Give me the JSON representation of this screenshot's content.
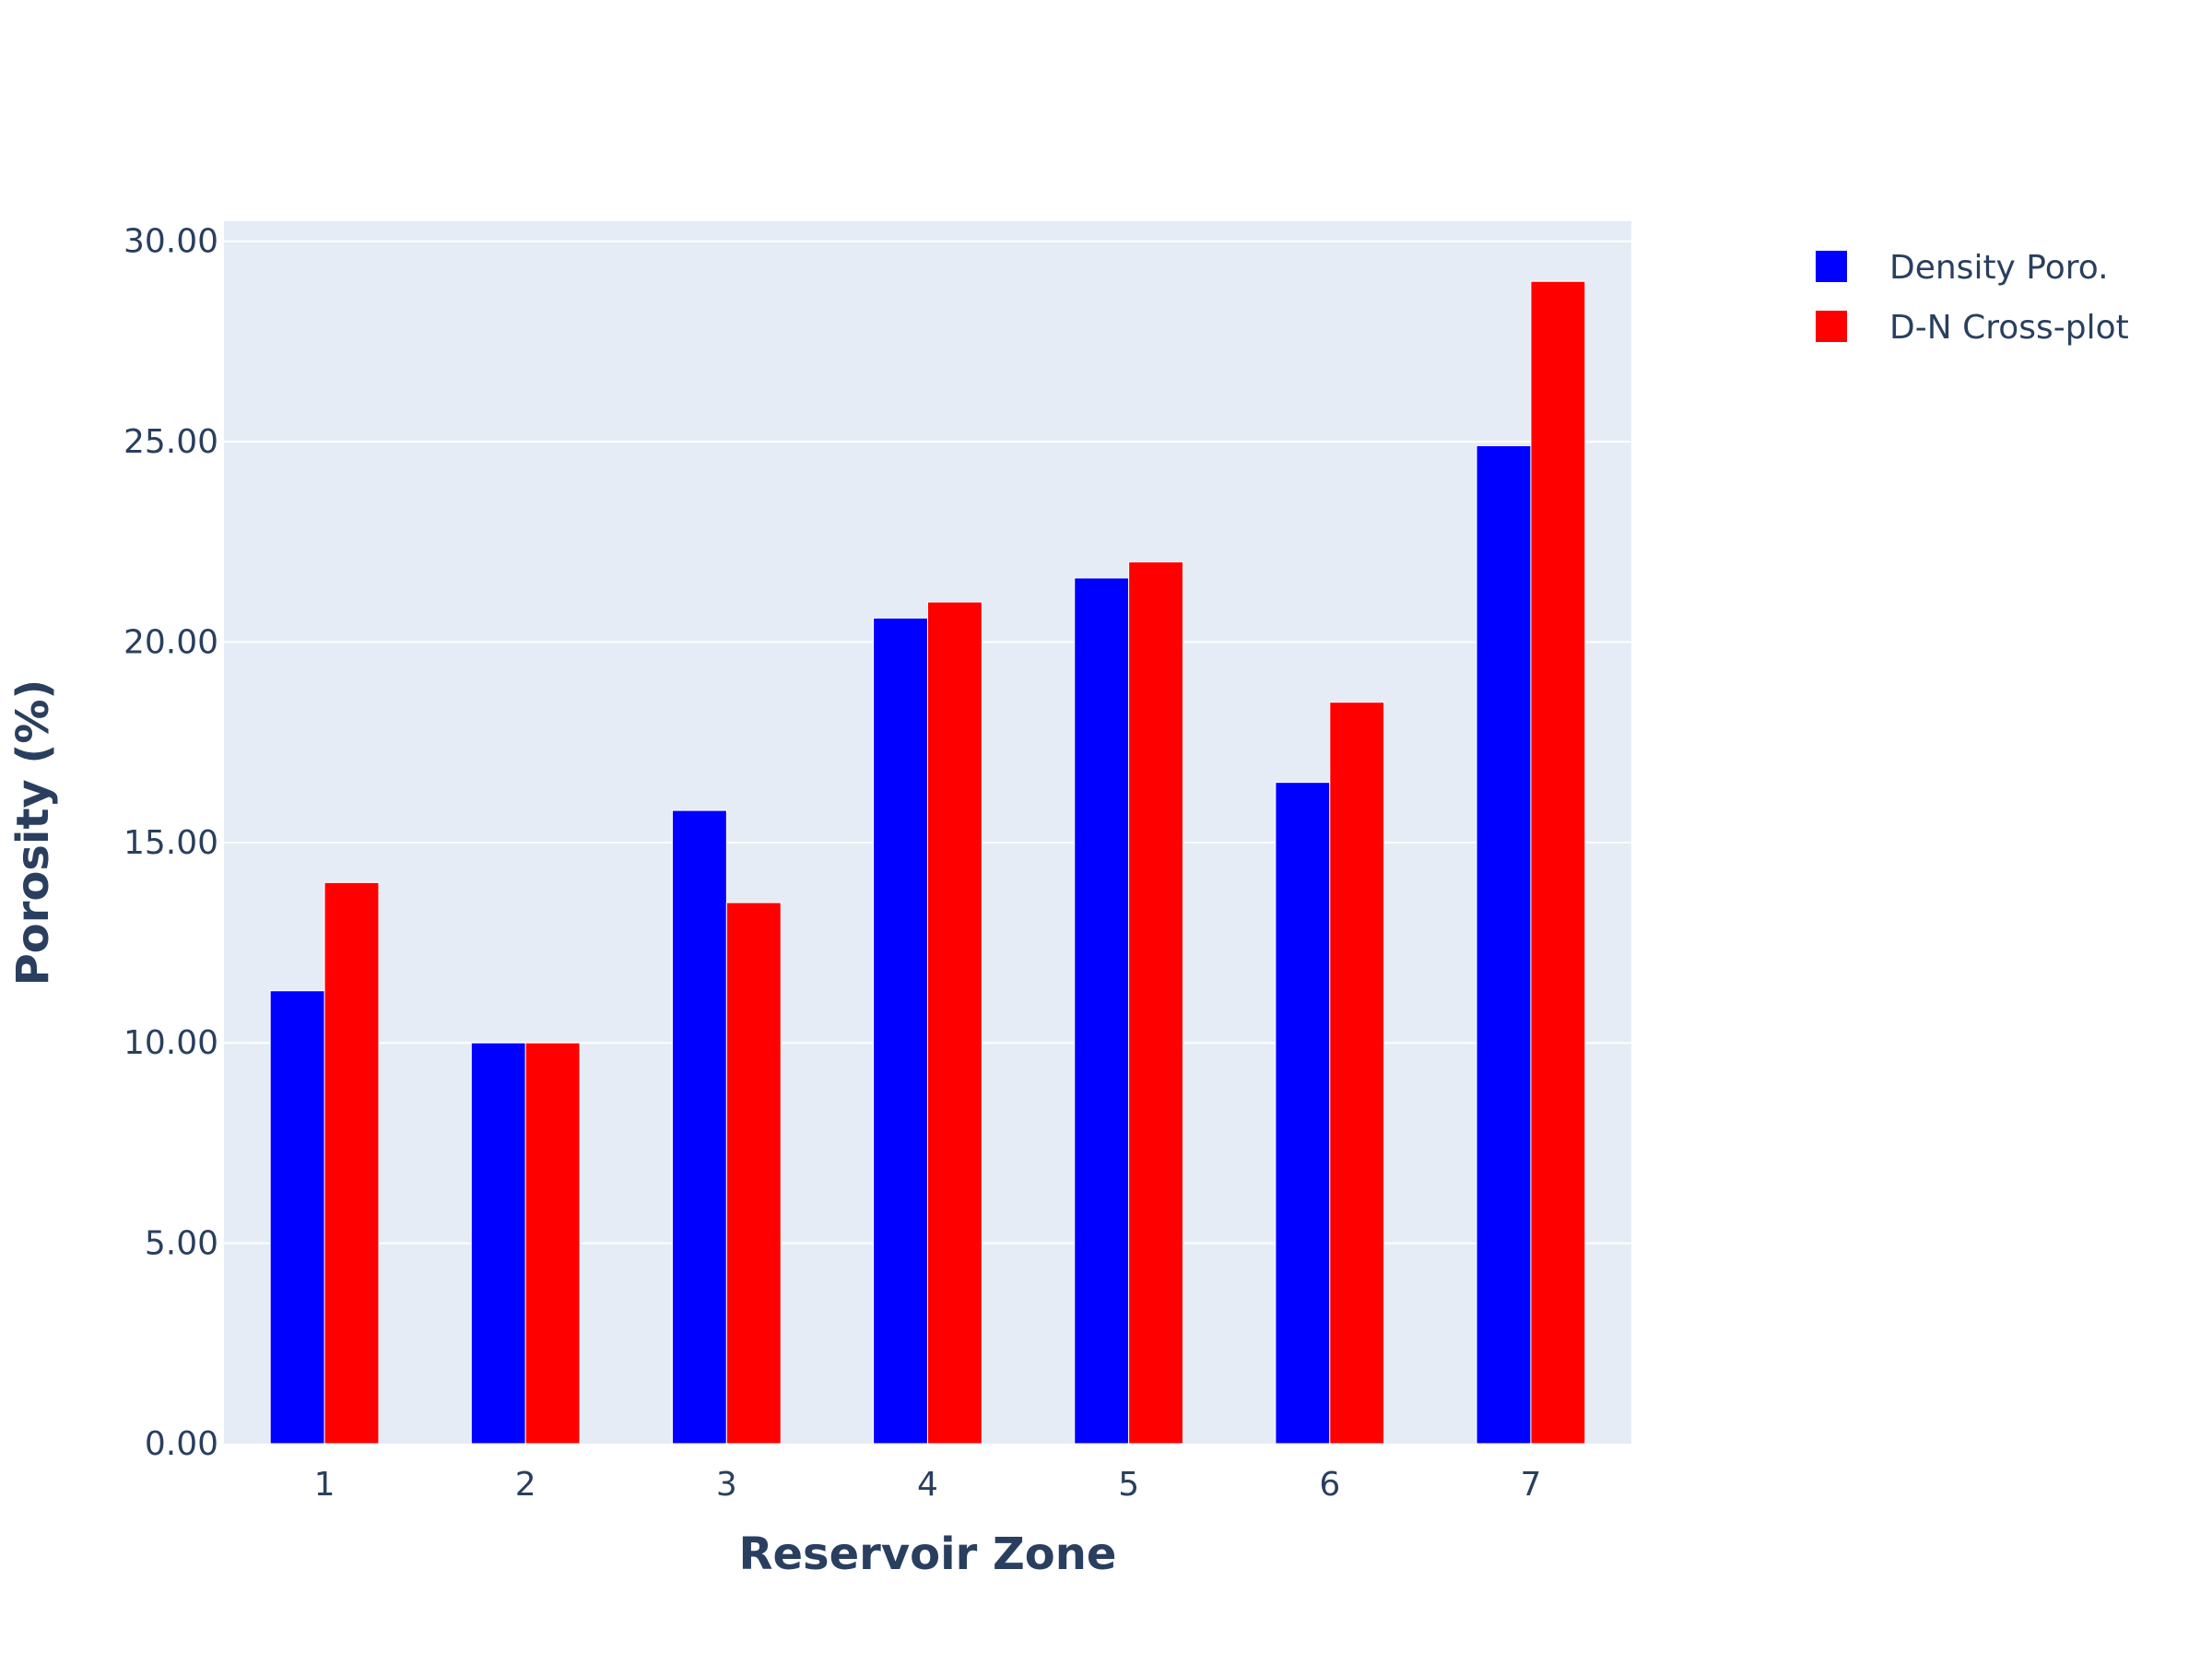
{
  "chart_data": {
    "type": "bar",
    "title": "",
    "xlabel": "Reservoir Zone",
    "ylabel": "Porosity (%)",
    "categories": [
      "1",
      "2",
      "3",
      "4",
      "5",
      "6",
      "7"
    ],
    "series": [
      {
        "name": "Density Poro.",
        "color": "#0000ff",
        "values": [
          11.3,
          10.0,
          15.8,
          20.6,
          21.6,
          16.5,
          24.9
        ]
      },
      {
        "name": "D-N Cross-plot",
        "color": "#ff0000",
        "values": [
          14.0,
          10.0,
          13.5,
          21.0,
          22.0,
          18.5,
          29.0
        ]
      }
    ],
    "ylim": [
      0,
      30.5
    ],
    "yticks": [
      "0.00",
      "5.00",
      "10.00",
      "15.00",
      "20.00",
      "25.00",
      "30.00"
    ],
    "grid": true,
    "legend_position": "top-right",
    "plot_background": "#e5ecf6",
    "text_color": "#2a3f5f"
  }
}
